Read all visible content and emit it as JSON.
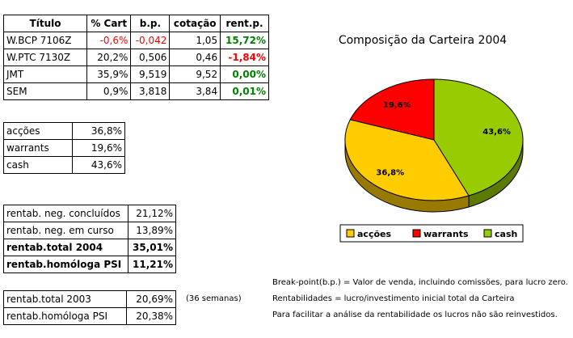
{
  "holdings": {
    "headers": [
      "Título",
      "% Cart",
      "b.p.",
      "cotação",
      "rent.p."
    ],
    "rows": [
      {
        "titulo": "W.BCP 7106Z",
        "cart": "-0,6%",
        "bp": "-0,042",
        "cotacao": "1,05",
        "rent": "15,72%"
      },
      {
        "titulo": "W.PTC 7130Z",
        "cart": "20,2%",
        "bp": "0,506",
        "cotacao": "0,46",
        "rent": "-1,84%"
      },
      {
        "titulo": "JMT",
        "cart": "35,9%",
        "bp": "9,519",
        "cotacao": "9,52",
        "rent": "0,00%"
      },
      {
        "titulo": "SEM",
        "cart": "0,9%",
        "bp": "3,818",
        "cotacao": "3,84",
        "rent": "0,01%"
      }
    ]
  },
  "allocation": {
    "rows": [
      {
        "label": "acções",
        "value": "36,8%"
      },
      {
        "label": "warrants",
        "value": "19,6%"
      },
      {
        "label": "cash",
        "value": "43,6%"
      }
    ]
  },
  "returns": {
    "rows": [
      {
        "label": "rentab. neg. concluídos",
        "value": "21,12%"
      },
      {
        "label": "rentab. neg. em curso",
        "value": "13,89%"
      },
      {
        "label": "rentab.total 2004",
        "value": "35,01%"
      },
      {
        "label": "rentab.homóloga PSI",
        "value": "11,21%"
      }
    ]
  },
  "previous": {
    "rows": [
      {
        "label": "rentab.total 2003",
        "value": "20,69%"
      },
      {
        "label": "rentab.homóloga PSI",
        "value": "20,38%"
      }
    ],
    "weeks_note": "(36 semanas)"
  },
  "notes": {
    "line1": "Break-point(b.p.) = Valor de venda, incluindo comissões, para lucro zero.",
    "line2": "Rentabilidades = lucro/investimento inicial total da Carteira",
    "line3": "Para facilitar a análise da rentabilidade os lucros não são reinvestidos."
  },
  "chart_data": {
    "type": "pie",
    "title": "Composição da Carteira 2004",
    "categories": [
      "acções",
      "warrants",
      "cash"
    ],
    "values": [
      36.8,
      19.6,
      43.6
    ],
    "labels": [
      "36,8%",
      "19,6%",
      "43,6%"
    ],
    "colors": [
      "#ffcc00",
      "#ff0000",
      "#99cc00"
    ],
    "legend": "bottom"
  }
}
